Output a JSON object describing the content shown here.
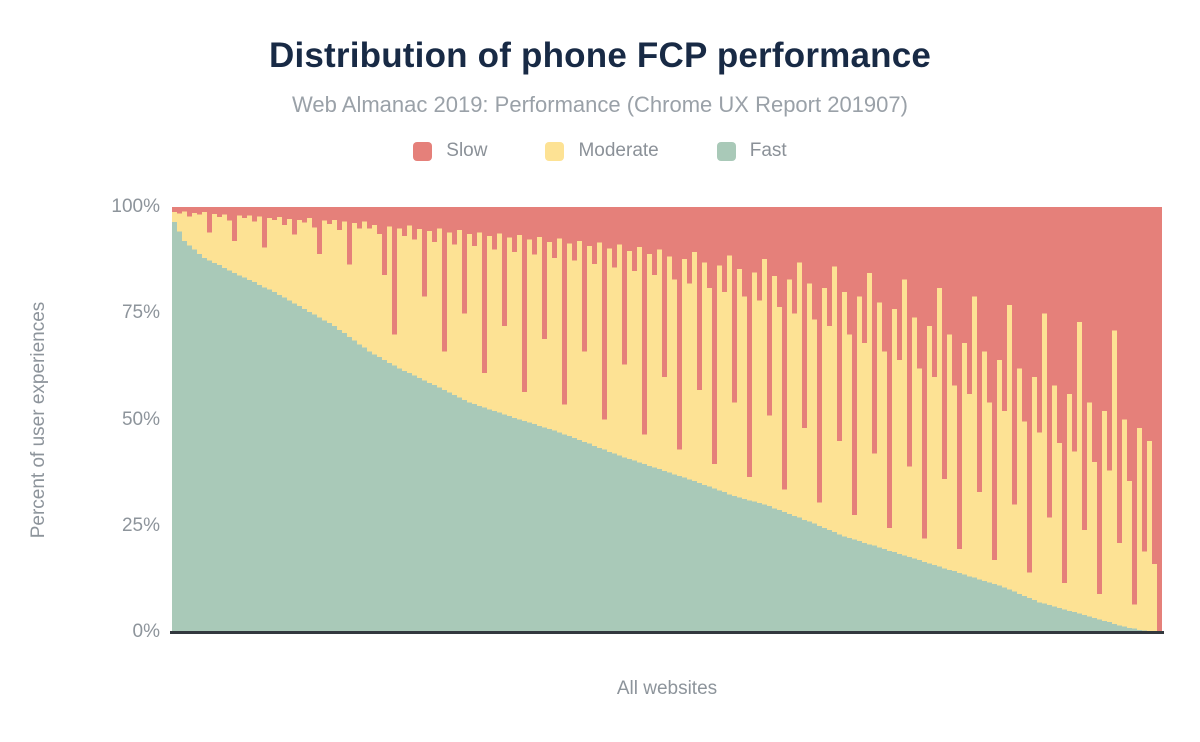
{
  "chart_data": {
    "type": "bar",
    "stacked": true,
    "title": "Distribution of phone FCP performance",
    "subtitle": "Web Almanac 2019: Performance (Chrome UX Report 201907)",
    "xlabel": "All websites",
    "ylabel": "Percent of user experiences",
    "ylim": [
      0,
      100
    ],
    "yticks_top_to_bottom": [
      "100%",
      "75%",
      "50%",
      "25%",
      "0%"
    ],
    "grid": false,
    "legend_position": "top",
    "note": "Each bar is one website sorted by fast-FCP share descending; values are percents of user experiences; Moderate = 100 - Fast - Slow for every bar.",
    "background_color": "#ffffff",
    "title_color": "#182a45",
    "subtitle_color": "#9aa1a8",
    "axis_text_color": "#8d949b",
    "axis_line_color": "#32383e",
    "series": [
      {
        "name": "Slow",
        "color": "#e5807a",
        "values": [
          1.2,
          1.5,
          1.0,
          2.2,
          1.4,
          1.8,
          1.2,
          6.0,
          1.6,
          2.4,
          1.8,
          3.2,
          8.0,
          2.0,
          2.6,
          2.0,
          3.4,
          2.2,
          9.5,
          2.6,
          3.0,
          2.4,
          4.2,
          2.8,
          6.5,
          3.0,
          3.6,
          2.6,
          4.8,
          11.0,
          3.2,
          4.0,
          3.0,
          5.4,
          3.4,
          13.5,
          3.8,
          5.0,
          3.4,
          5.0,
          4.2,
          6.4,
          16.0,
          4.6,
          30.0,
          5.0,
          6.8,
          4.4,
          7.6,
          5.2,
          21.0,
          5.6,
          8.2,
          5.0,
          34.0,
          6.0,
          8.8,
          5.4,
          25.0,
          6.4,
          9.2,
          6.0,
          39.0,
          6.8,
          10.0,
          6.2,
          28.0,
          7.2,
          10.6,
          6.6,
          43.5,
          7.6,
          11.2,
          7.0,
          31.0,
          8.2,
          12.0,
          7.4,
          46.5,
          8.6,
          12.6,
          8.0,
          34.0,
          9.2,
          13.4,
          8.4,
          50.0,
          9.8,
          14.2,
          8.8,
          37.0,
          10.4,
          15.0,
          9.4,
          53.5,
          11.0,
          16.0,
          10.0,
          40.0,
          11.6,
          17.0,
          57.0,
          12.2,
          18.0,
          10.6,
          43.0,
          13.0,
          19.0,
          60.5,
          13.8,
          20.0,
          11.4,
          46.0,
          14.6,
          21.0,
          63.5,
          15.4,
          22.0,
          12.2,
          49.0,
          16.2,
          23.5,
          66.5,
          17.0,
          25.0,
          13.0,
          52.0,
          18.0,
          26.5,
          69.5,
          19.0,
          28.0,
          14.0,
          55.0,
          20.0,
          30.0,
          72.5,
          21.0,
          32.0,
          15.5,
          58.0,
          22.5,
          34.0,
          75.5,
          24.0,
          36.0,
          17.0,
          61.0,
          26.0,
          38.0,
          78.0,
          28.0,
          40.0,
          19.0,
          64.0,
          30.0,
          42.0,
          80.5,
          32.0,
          44.0,
          21.0,
          67.0,
          34.0,
          46.0,
          83.0,
          36.0,
          48.0,
          23.0,
          70.0,
          38.0,
          50.5,
          86.0,
          40.0,
          53.0,
          25.0,
          73.0,
          42.0,
          55.5,
          88.5,
          44.0,
          57.5,
          27.0,
          76.0,
          46.0,
          60.0,
          91.0,
          48.0,
          62.0,
          29.0,
          79.0,
          50.0,
          64.5,
          93.5,
          52.0,
          81.0,
          55.0,
          84.0,
          100.0
        ]
      },
      {
        "name": "Moderate",
        "color": "#fde294",
        "values_rule": "100 - Fast - Slow"
      },
      {
        "name": "Fast",
        "color": "#a9c9b8",
        "values": [
          96.5,
          94.2,
          92,
          91,
          90,
          89,
          88,
          87.4,
          86.8,
          86.3,
          85.7,
          85.1,
          84.5,
          83.9,
          83.4,
          82.8,
          82.3,
          81.7,
          81.1,
          80.6,
          80,
          79.3,
          78.7,
          78,
          77.3,
          76.7,
          76,
          75.3,
          74.7,
          74,
          73.3,
          72.7,
          72,
          71.1,
          70.3,
          69.4,
          68.6,
          67.7,
          66.9,
          66,
          65.3,
          64.7,
          64,
          63.3,
          62.7,
          62,
          61.4,
          60.9,
          60.3,
          59.8,
          59.2,
          58.6,
          58.1,
          57.5,
          56.9,
          56.3,
          55.8,
          55.2,
          54.6,
          54,
          53.6,
          53.2,
          52.8,
          52.4,
          52,
          51.6,
          51.2,
          50.8,
          50.4,
          50,
          49.6,
          49.3,
          48.9,
          48.5,
          48.1,
          47.8,
          47.4,
          47,
          46.5,
          46.1,
          45.6,
          45.2,
          44.7,
          44.3,
          43.8,
          43.3,
          42.9,
          42.4,
          42,
          41.5,
          41.1,
          40.7,
          40.3,
          39.9,
          39.5,
          39.1,
          38.7,
          38.3,
          37.9,
          37.5,
          37.1,
          36.7,
          36.3,
          35.9,
          35.5,
          35.1,
          34.6,
          34.2,
          33.8,
          33.3,
          32.9,
          32.4,
          32,
          31.7,
          31.3,
          31,
          30.7,
          30.3,
          30,
          29.6,
          29.1,
          28.7,
          28.2,
          27.8,
          27.3,
          26.9,
          26.4,
          26,
          25.5,
          25,
          24.5,
          24,
          23.5,
          23,
          22.5,
          22.1,
          21.8,
          21.4,
          21,
          20.6,
          20.3,
          19.9,
          19.5,
          19.1,
          18.8,
          18.4,
          18,
          17.6,
          17.3,
          16.9,
          16.5,
          16.1,
          15.8,
          15.4,
          15,
          14.6,
          14.3,
          13.9,
          13.5,
          13.1,
          12.8,
          12.4,
          12,
          11.6,
          11.3,
          10.9,
          10.5,
          10,
          9.5,
          9,
          8.5,
          8,
          7.5,
          7,
          6.7,
          6.3,
          6,
          5.7,
          5.3,
          5,
          4.7,
          4.3,
          4,
          3.7,
          3.3,
          3,
          2.6,
          2.3,
          1.9,
          1.5,
          1.3,
          1,
          0.8,
          0.5,
          0.4,
          0.2,
          0.1,
          0
        ]
      }
    ]
  }
}
